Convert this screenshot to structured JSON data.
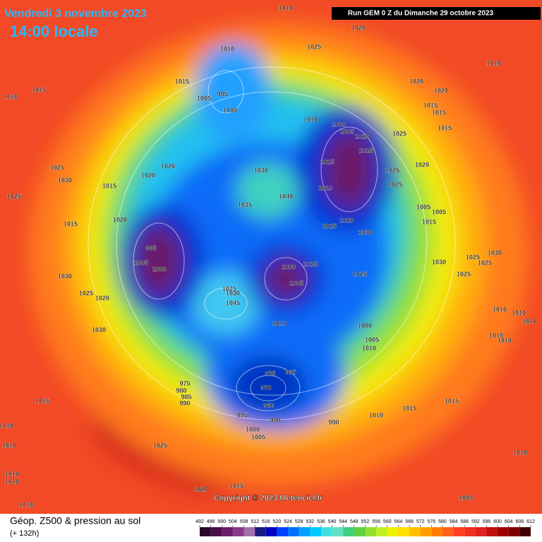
{
  "header": {
    "date": "Vendredi 3 novembre 2023",
    "time": "14:00 locale",
    "run": "Run GEM 0 Z du Dimanche 29 octobre 2023"
  },
  "copyright": "Copyright © 2023 Meteociel.fr",
  "legend": {
    "title": "Géop. Z500 & pression au sol",
    "subtitle": "(+ 132h)",
    "ticks": [
      492,
      496,
      500,
      504,
      508,
      512,
      516,
      520,
      524,
      528,
      532,
      536,
      540,
      544,
      548,
      552,
      556,
      560,
      564,
      568,
      572,
      576,
      580,
      584,
      588,
      592,
      596,
      600,
      604,
      608,
      612
    ],
    "colors": [
      "#2a0a2a",
      "#4b1048",
      "#6a1d68",
      "#8a3a8a",
      "#a070a8",
      "#1a1a80",
      "#0000c0",
      "#0040ff",
      "#0070ff",
      "#00a0ff",
      "#00c8ff",
      "#40e0e0",
      "#60e0c0",
      "#40d080",
      "#60d040",
      "#90e030",
      "#c0f020",
      "#f0f000",
      "#ffe000",
      "#ffc000",
      "#ffa000",
      "#ff8000",
      "#ff6020",
      "#ff4020",
      "#f03020",
      "#e02020",
      "#c01010",
      "#a00000",
      "#800000",
      "#400000"
    ]
  },
  "pressure_labels": [
    1010,
    1020,
    1025,
    1010,
    1010,
    1015,
    1005,
    995,
    1000,
    1010,
    1015,
    1020,
    1020,
    1015,
    1015,
    1015,
    1010,
    1000,
    1005,
    1010,
    1025,
    1015,
    1015,
    1025,
    1020,
    1025,
    1010,
    1030,
    1040,
    1035,
    1025,
    1030,
    1020,
    1020,
    1015,
    1025,
    1015,
    1020,
    1025,
    1020,
    1030,
    1005,
    1005,
    1015,
    995,
    1005,
    1000,
    1000,
    1015,
    1005,
    1025,
    1030,
    1025,
    1030,
    1025,
    1025,
    1030,
    1025,
    1020,
    1025,
    1030,
    1045,
    1010,
    1000,
    1005,
    1010,
    1030,
    1010,
    1010,
    1010,
    1010,
    1010,
    975,
    980,
    985,
    990,
    975,
    985,
    970,
    980,
    995,
    990,
    990,
    1000,
    1005,
    1010,
    1015,
    1015,
    1015,
    1010,
    1010,
    1025,
    1010,
    1010,
    1010,
    1015,
    1020,
    1010,
    1005
  ]
}
